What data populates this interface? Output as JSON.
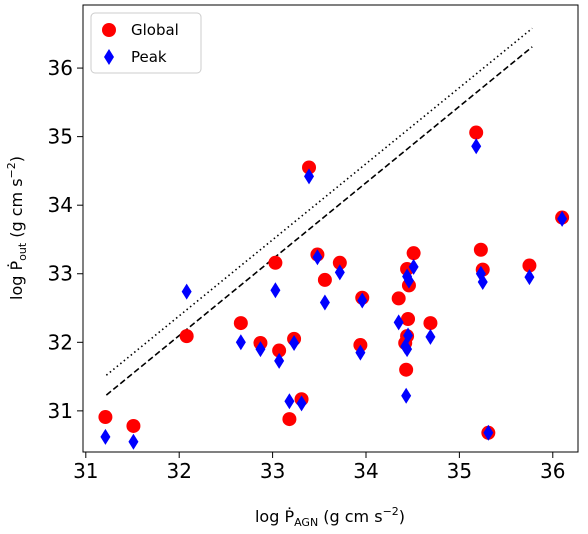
{
  "chart_data": {
    "type": "scatter",
    "xlabel": [
      "log Ṗ",
      "AGN",
      " (g cm s",
      "−2",
      ")"
    ],
    "ylabel": [
      "log Ṗ",
      "out",
      " (g cm s",
      "−2",
      ")"
    ],
    "xlim": [
      30.97,
      36.27
    ],
    "ylim": [
      30.4,
      36.92
    ],
    "xticks": [
      31,
      32,
      33,
      34,
      35,
      36
    ],
    "yticks": [
      31,
      32,
      33,
      34,
      35,
      36
    ],
    "legend": "upper left",
    "lines": [
      {
        "style": "dotted",
        "color": "#000000",
        "x": [
          31.22,
          35.78
        ],
        "y": [
          31.52,
          36.58
        ]
      },
      {
        "style": "dashed",
        "color": "#000000",
        "x": [
          31.22,
          35.78
        ],
        "y": [
          31.23,
          36.31
        ]
      }
    ],
    "series": [
      {
        "name": "Global",
        "color": "#ff0000",
        "marker": "circle",
        "x": [
          31.21,
          31.51,
          32.08,
          32.66,
          32.87,
          33.03,
          33.07,
          33.23,
          33.18,
          33.31,
          33.39,
          33.48,
          33.56,
          33.72,
          33.96,
          33.94,
          34.35,
          34.42,
          34.44,
          34.45,
          34.44,
          34.43,
          34.46,
          34.51,
          34.69,
          35.18,
          35.23,
          35.25,
          35.31,
          35.75,
          36.1
        ],
        "y": [
          30.91,
          30.78,
          32.09,
          32.28,
          31.99,
          33.16,
          31.88,
          32.05,
          30.88,
          31.17,
          34.55,
          33.28,
          32.91,
          33.16,
          32.65,
          31.96,
          32.64,
          31.99,
          33.07,
          32.34,
          32.09,
          31.6,
          32.83,
          33.3,
          32.28,
          35.06,
          33.35,
          33.06,
          30.68,
          33.12,
          33.82
        ]
      },
      {
        "name": "Peak",
        "color": "#0000ff",
        "marker": "diamond",
        "x": [
          31.21,
          31.51,
          32.08,
          32.66,
          32.87,
          33.03,
          33.07,
          33.23,
          33.18,
          33.31,
          33.39,
          33.48,
          33.56,
          33.72,
          33.96,
          33.94,
          34.35,
          34.42,
          34.44,
          34.45,
          34.44,
          34.43,
          34.46,
          34.51,
          34.69,
          35.18,
          35.23,
          35.25,
          35.31,
          35.75,
          36.1
        ],
        "y": [
          30.62,
          30.55,
          32.74,
          32.0,
          31.9,
          32.76,
          31.73,
          31.99,
          31.14,
          31.11,
          34.42,
          33.24,
          32.58,
          33.02,
          32.61,
          31.85,
          32.29,
          31.94,
          32.96,
          32.1,
          31.9,
          31.22,
          32.9,
          33.1,
          32.08,
          34.86,
          33.0,
          32.88,
          30.68,
          32.95,
          33.8
        ]
      }
    ]
  }
}
